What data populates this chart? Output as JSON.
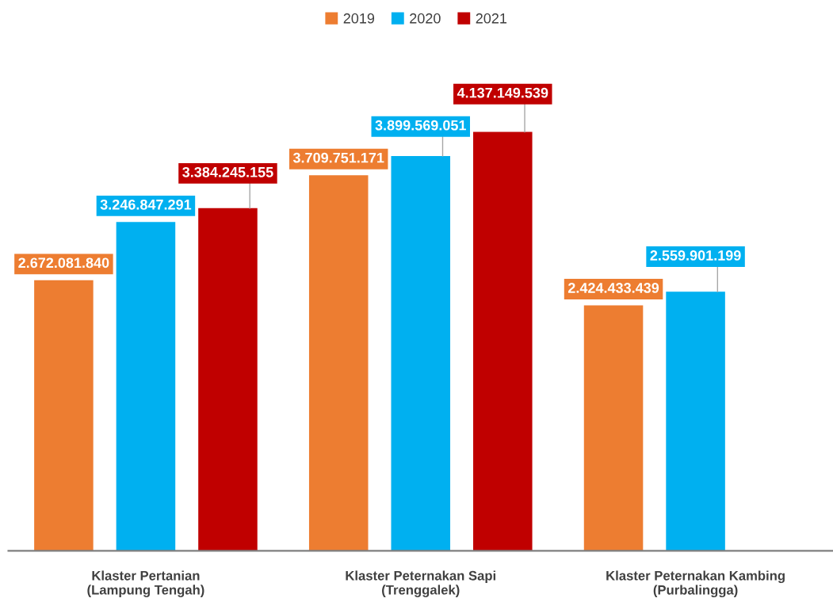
{
  "chart_data": {
    "type": "bar",
    "categories": [
      "Klaster Pertanian\n(Lampung Tengah)",
      "Klaster Peternakan Sapi\n(Trenggalek)",
      "Klaster Peternakan Kambing\n(Purbalingga)"
    ],
    "series": [
      {
        "name": "2019",
        "color": "#ed7d31",
        "values": [
          2672081840,
          3709751171,
          2424433439
        ],
        "value_labels": [
          "2.672.081.840",
          "3.709.751.171",
          "2.424.433.439"
        ]
      },
      {
        "name": "2020",
        "color": "#00b0f0",
        "values": [
          3246847291,
          3899569051,
          2559901199
        ],
        "value_labels": [
          "3.246.847.291",
          "3.899.569.051",
          "2.559.901.199"
        ]
      },
      {
        "name": "2021",
        "color": "#c00000",
        "values": [
          3384245155,
          4137149539,
          null
        ],
        "value_labels": [
          "3.384.245.155",
          "4.137.149.539",
          null
        ]
      }
    ],
    "legend": "top",
    "grid": false
  }
}
